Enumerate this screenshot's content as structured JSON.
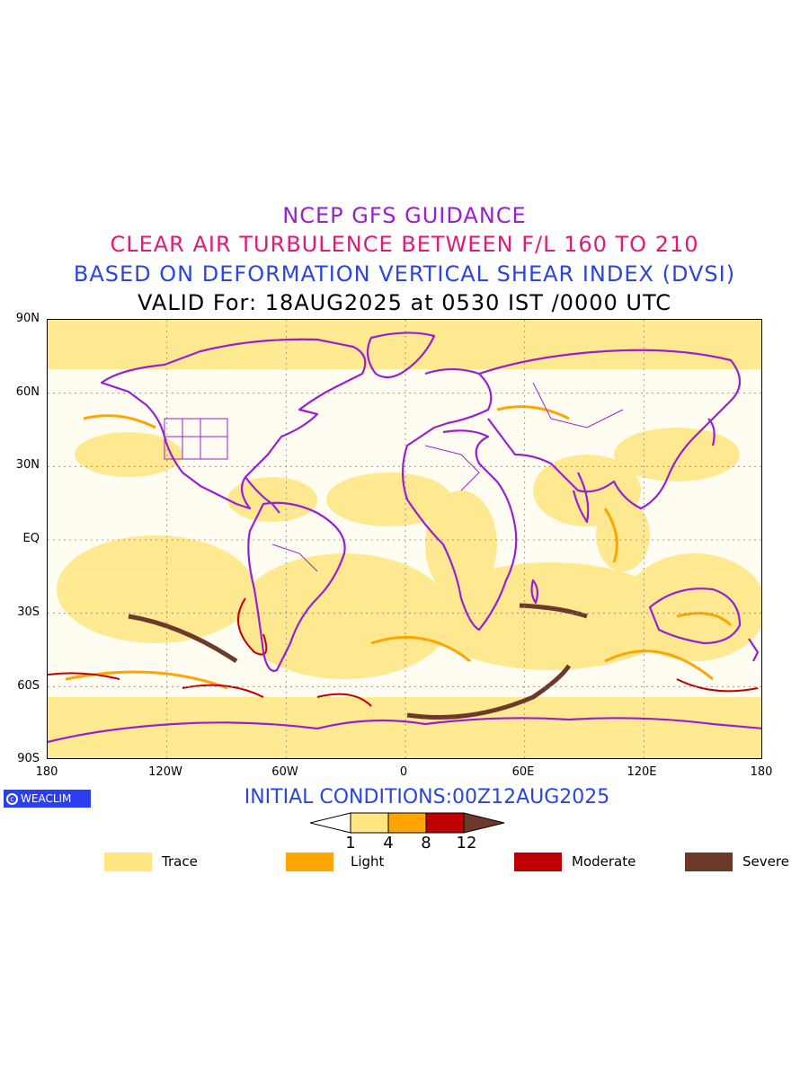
{
  "titles": {
    "line1": "NCEP GFS GUIDANCE",
    "line2": "CLEAR AIR TURBULENCE BETWEEN F/L 160 TO 210",
    "line3": "BASED ON DEFORMATION VERTICAL SHEAR INDEX (DVSI)",
    "line4": "VALID For: 18AUG2025 at 0530 IST /0000 UTC"
  },
  "axes": {
    "y_labels": [
      "90N",
      "60N",
      "30N",
      "EQ",
      "30S",
      "60S",
      "90S"
    ],
    "x_labels": [
      "180",
      "120W",
      "60W",
      "0",
      "60E",
      "120E",
      "180"
    ]
  },
  "logo": {
    "text": "WEACLIM"
  },
  "initial_conditions": "INITIAL CONDITIONS:00Z12AUG2025",
  "colorbar": {
    "ticks": [
      "1",
      "4",
      "8",
      "12"
    ],
    "colors": [
      "#ffe680",
      "#ffa500",
      "#c00000",
      "#6b3a2a"
    ]
  },
  "legend": [
    {
      "label": "Trace",
      "color": "#ffe680"
    },
    {
      "label": "Light",
      "color": "#ffa500"
    },
    {
      "label": "Moderate",
      "color": "#c00000"
    },
    {
      "label": "Severe",
      "color": "#6b3a2a"
    }
  ],
  "map": {
    "coastline_color": "#9a1fd0",
    "grid_color": "#888888"
  }
}
